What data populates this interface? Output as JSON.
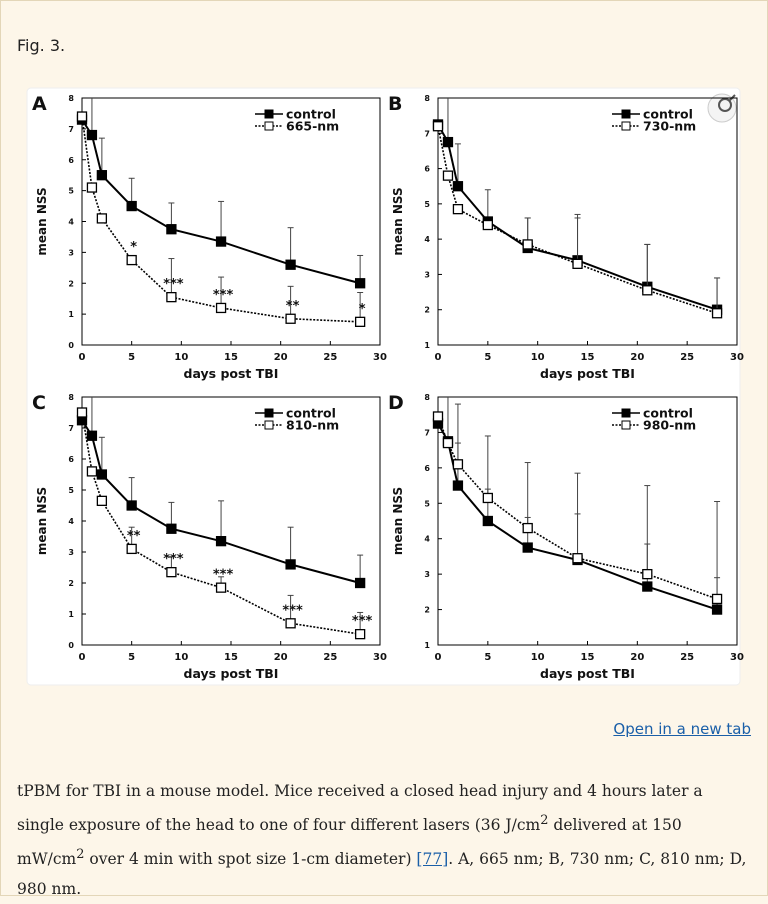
{
  "header": {
    "title": "Fig. 3."
  },
  "link": "Open in a new tab",
  "caption": {
    "parts": [
      "tPBM for TBI in a mouse model. Mice received a closed head injury and 4  hours later a single exposure of the head to one of four different lasers (36  J/cm",
      "2",
      " delivered at 150  mW/cm",
      "2",
      " over 4  min with spot size 1-cm diameter) ",
      "[77]",
      ". A, 665  nm; B, 730  nm; C, 810  nm; D, 980  nm."
    ]
  },
  "chart_data": [
    {
      "type": "line",
      "panel": "A",
      "x_label": "days post TBI",
      "y_label": "mean NSS",
      "x": [
        0,
        1,
        2,
        5,
        9,
        14,
        21,
        28
      ],
      "xlim": [
        0,
        30
      ],
      "xticks": [
        0,
        5,
        10,
        15,
        20,
        25,
        30
      ],
      "ylim": [
        0,
        8
      ],
      "yticks": [
        0,
        1,
        2,
        3,
        4,
        5,
        6,
        7,
        8
      ],
      "legend": "upper right",
      "series": [
        {
          "name": "control",
          "color": "#000000",
          "marker": "filled",
          "line_style": "solid",
          "values": [
            7.3,
            6.8,
            5.5,
            4.5,
            3.75,
            3.35,
            2.6,
            2.0
          ],
          "errors": [
            null,
            1.5,
            1.2,
            0.9,
            0.85,
            1.3,
            1.2,
            0.9
          ]
        },
        {
          "name": "665-nm",
          "color": "#000000",
          "marker": "open",
          "line_style": "dotted",
          "values": [
            7.4,
            5.1,
            4.1,
            2.75,
            1.55,
            1.2,
            0.85,
            0.75
          ],
          "errors": [
            null,
            null,
            null,
            null,
            1.25,
            1.0,
            1.05,
            0.95
          ]
        }
      ],
      "annotations": [
        {
          "x": 5,
          "text": "*"
        },
        {
          "x": 9,
          "text": "***"
        },
        {
          "x": 14,
          "text": "***"
        },
        {
          "x": 21,
          "text": "**"
        },
        {
          "x": 28,
          "text": "*"
        }
      ]
    },
    {
      "type": "line",
      "panel": "B",
      "x_label": "days post TBI",
      "y_label": "mean NSS",
      "x": [
        0,
        1,
        2,
        5,
        9,
        14,
        21,
        28
      ],
      "xlim": [
        0,
        30
      ],
      "xticks": [
        0,
        5,
        10,
        15,
        20,
        25,
        30
      ],
      "ylim": [
        1,
        8
      ],
      "yticks": [
        1,
        2,
        3,
        4,
        5,
        6,
        7,
        8
      ],
      "legend": "upper right",
      "series": [
        {
          "name": "control",
          "color": "#000000",
          "marker": "filled",
          "line_style": "solid",
          "values": [
            7.25,
            6.75,
            5.5,
            4.5,
            3.75,
            3.4,
            2.65,
            2.0
          ],
          "errors": [
            null,
            1.5,
            1.2,
            0.9,
            0.85,
            1.3,
            1.2,
            0.9
          ]
        },
        {
          "name": "730-nm",
          "color": "#000000",
          "marker": "open",
          "line_style": "dotted",
          "values": [
            7.2,
            5.8,
            4.85,
            4.4,
            3.85,
            3.3,
            2.55,
            1.9
          ],
          "errors": [
            null,
            null,
            null,
            null,
            0.75,
            1.3,
            1.3,
            1.0
          ]
        }
      ],
      "annotations": []
    },
    {
      "type": "line",
      "panel": "C",
      "x_label": "days post TBI",
      "y_label": "mean NSS",
      "x": [
        0,
        1,
        2,
        5,
        9,
        14,
        21,
        28
      ],
      "xlim": [
        0,
        30
      ],
      "xticks": [
        0,
        5,
        10,
        15,
        20,
        25,
        30
      ],
      "ylim": [
        0,
        8
      ],
      "yticks": [
        0,
        1,
        2,
        3,
        4,
        5,
        6,
        7,
        8
      ],
      "legend": "upper right",
      "series": [
        {
          "name": "control",
          "color": "#000000",
          "marker": "filled",
          "line_style": "solid",
          "values": [
            7.25,
            6.75,
            5.5,
            4.5,
            3.75,
            3.35,
            2.6,
            2.0
          ],
          "errors": [
            null,
            1.5,
            1.2,
            0.9,
            0.85,
            1.3,
            1.2,
            0.9
          ]
        },
        {
          "name": "810-nm",
          "color": "#000000",
          "marker": "open",
          "line_style": "dotted",
          "values": [
            7.5,
            5.6,
            4.65,
            3.1,
            2.35,
            1.85,
            0.7,
            0.35
          ],
          "errors": [
            null,
            null,
            null,
            0.7,
            0.5,
            0.35,
            0.9,
            0.7
          ]
        }
      ],
      "annotations": [
        {
          "x": 5,
          "text": "**"
        },
        {
          "x": 9,
          "text": "***"
        },
        {
          "x": 14,
          "text": "***"
        },
        {
          "x": 21,
          "text": "***"
        },
        {
          "x": 28,
          "text": "***"
        }
      ]
    },
    {
      "type": "line",
      "panel": "D",
      "x_label": "days post TBI",
      "y_label": "mean NSS",
      "x": [
        0,
        1,
        2,
        5,
        9,
        14,
        21,
        28
      ],
      "xlim": [
        0,
        30
      ],
      "xticks": [
        0,
        5,
        10,
        15,
        20,
        25,
        30
      ],
      "ylim": [
        1,
        8
      ],
      "yticks": [
        1,
        2,
        3,
        4,
        5,
        6,
        7,
        8
      ],
      "legend": "upper right",
      "series": [
        {
          "name": "control",
          "color": "#000000",
          "marker": "filled",
          "line_style": "solid",
          "values": [
            7.25,
            6.75,
            5.5,
            4.5,
            3.75,
            3.4,
            2.65,
            2.0
          ],
          "errors": [
            null,
            1.5,
            1.2,
            0.9,
            0.85,
            1.3,
            1.2,
            0.9
          ]
        },
        {
          "name": "980-nm",
          "color": "#000000",
          "marker": "open",
          "line_style": "dotted",
          "values": [
            7.45,
            6.7,
            6.1,
            5.15,
            4.3,
            3.45,
            3.0,
            2.3
          ],
          "errors": [
            null,
            null,
            1.7,
            1.75,
            1.85,
            2.4,
            2.5,
            2.75
          ]
        }
      ],
      "annotations": []
    }
  ]
}
